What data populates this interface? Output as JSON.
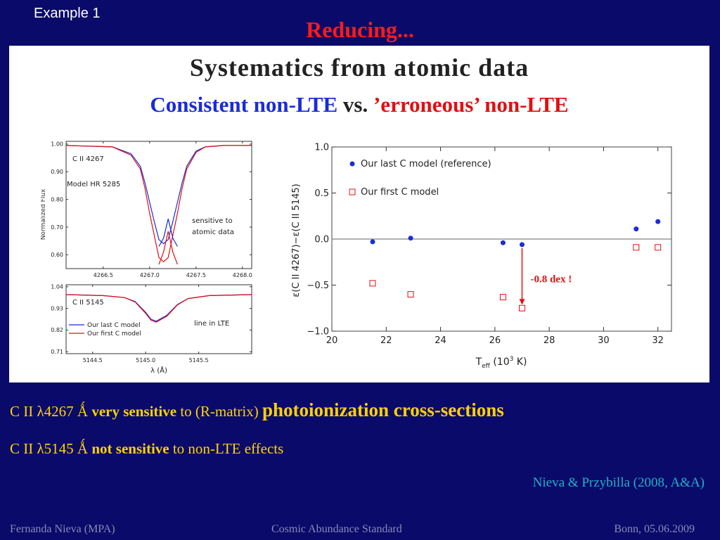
{
  "header": {
    "example_label": "Example 1",
    "title": "Reducing..."
  },
  "figure": {
    "title": "Systematics from atomic data",
    "subtitle": {
      "part1": "Consistent non-LTE",
      "part2": " vs. ",
      "part3": "’erroneous’ non-LTE"
    }
  },
  "colors": {
    "background": "#0a0a6a",
    "title_red": "#ff1a1a",
    "bullet_yellow": "#ffd200",
    "cite_cyan": "#22b0c8",
    "series_blue": "#1a2cd8",
    "series_red": "#e01010"
  },
  "chart_data": [
    {
      "type": "line",
      "panel": "top-left",
      "ylabel": "Normalized Flux",
      "xticks": [
        "4266.5",
        "4267.0",
        "4267.5",
        "4268.0"
      ],
      "yticks": [
        "1.00",
        "0.90",
        "0.80",
        "0.70",
        "0.60"
      ],
      "xlim": [
        4266.1,
        4268.1
      ],
      "ylim": [
        0.55,
        1.01
      ],
      "labels": {
        "line": "C II 4267",
        "model": "Model HR 5285",
        "note1": "sensitive to",
        "note2": "atomic data"
      },
      "series": [
        {
          "color": "#1a2cd8",
          "x": [
            4266.1,
            4266.6,
            4266.8,
            4266.9,
            4266.95,
            4267.0,
            4267.05,
            4267.1,
            4267.15,
            4267.2,
            4267.25,
            4267.3,
            4267.35,
            4267.4,
            4267.5,
            4267.6,
            4267.8,
            4268.1
          ],
          "y": [
            0.995,
            0.99,
            0.965,
            0.92,
            0.86,
            0.79,
            0.72,
            0.655,
            0.64,
            0.655,
            0.72,
            0.79,
            0.86,
            0.92,
            0.975,
            0.99,
            0.995,
            0.995
          ]
        },
        {
          "color": "#e01010",
          "x": [
            4266.1,
            4266.6,
            4266.8,
            4266.9,
            4266.95,
            4267.0,
            4267.05,
            4267.1,
            4267.15,
            4267.2,
            4267.25,
            4267.3,
            4267.35,
            4267.4,
            4267.5,
            4267.6,
            4267.8,
            4268.1
          ],
          "y": [
            0.995,
            0.99,
            0.96,
            0.91,
            0.84,
            0.75,
            0.67,
            0.59,
            0.575,
            0.59,
            0.67,
            0.75,
            0.84,
            0.91,
            0.97,
            0.99,
            0.995,
            0.995
          ]
        },
        {
          "color": "#1a2cd8",
          "x": [
            4267.1,
            4267.15,
            4267.2,
            4267.25,
            4267.3
          ],
          "y": [
            0.63,
            0.66,
            0.73,
            0.66,
            0.63
          ]
        },
        {
          "color": "#e01010",
          "x": [
            4267.1,
            4267.15,
            4267.2,
            4267.25,
            4267.3
          ],
          "y": [
            0.565,
            0.61,
            0.685,
            0.61,
            0.565
          ]
        }
      ]
    },
    {
      "type": "line",
      "panel": "bottom-left",
      "xlabel": "λ (Å)",
      "xticks": [
        "5144.5",
        "5145.0",
        "5145.5"
      ],
      "yticks": [
        "1.04",
        "0.93",
        "0.82",
        "0.71"
      ],
      "xlim": [
        5144.25,
        5146.0
      ],
      "ylim": [
        0.7,
        1.05
      ],
      "labels": {
        "line": "C II 5145",
        "note": "line in LTE"
      },
      "series": [
        {
          "name": "Our last C model",
          "color": "#1a2cd8",
          "x": [
            5144.25,
            5144.6,
            5144.8,
            5144.9,
            5145.0,
            5145.05,
            5145.1,
            5145.2,
            5145.3,
            5145.4,
            5145.6,
            5146.0
          ],
          "y": [
            1.0,
            0.995,
            0.985,
            0.965,
            0.91,
            0.875,
            0.865,
            0.895,
            0.95,
            0.98,
            0.995,
            1.0
          ]
        },
        {
          "name": "Our first C model",
          "color": "#e01010",
          "x": [
            5144.25,
            5144.6,
            5144.8,
            5144.9,
            5145.0,
            5145.05,
            5145.1,
            5145.2,
            5145.3,
            5145.4,
            5145.6,
            5146.0
          ],
          "y": [
            1.0,
            0.995,
            0.985,
            0.963,
            0.905,
            0.87,
            0.86,
            0.89,
            0.948,
            0.98,
            0.995,
            1.0
          ]
        }
      ]
    },
    {
      "type": "scatter",
      "panel": "right",
      "xlabel": {
        "main": "T",
        "sub": "eff",
        "rest": " (10",
        "sup": "3",
        "end": " K)"
      },
      "ylabel": "ε(C II 4267)−ε(C II 5145)",
      "xticks": [
        "20",
        "22",
        "24",
        "26",
        "28",
        "30",
        "32"
      ],
      "yticks": [
        "1.0",
        "0.5",
        "0.0",
        "−0.5",
        "−1.0"
      ],
      "xlim": [
        20,
        32.5
      ],
      "ylim": [
        -1.0,
        1.0
      ],
      "annotation": "-0.8 dex !",
      "series": [
        {
          "name": "Our last C model (reference)",
          "color": "#1a2cd8",
          "marker": "filled-circle",
          "x": [
            21.5,
            22.9,
            26.3,
            27.0,
            31.2,
            32.0
          ],
          "y": [
            -0.03,
            0.01,
            -0.04,
            -0.06,
            0.11,
            0.19
          ]
        },
        {
          "name": "Our first C model",
          "color": "#e01010",
          "marker": "open-square",
          "x": [
            21.5,
            22.9,
            26.3,
            27.0,
            31.2,
            32.0
          ],
          "y": [
            -0.48,
            -0.6,
            -0.63,
            -0.75,
            -0.09,
            -0.09
          ]
        }
      ]
    }
  ],
  "bullets": {
    "b1": {
      "a": "C II λ4267 Ǻ ",
      "b": "very sensitive",
      "c": " to (R-matrix) ",
      "d": "photoionization cross-sections"
    },
    "b2": {
      "a": "C II λ5145 Ǻ ",
      "b": "not sensitive",
      "c": " to non-LTE effects"
    }
  },
  "citation": "Nieva & Przybilla (2008, A&A)",
  "footer": {
    "left": "Fernanda Nieva (MPA)",
    "center": "Cosmic Abundance Standard",
    "right": "Bonn, 05.06.2009"
  }
}
